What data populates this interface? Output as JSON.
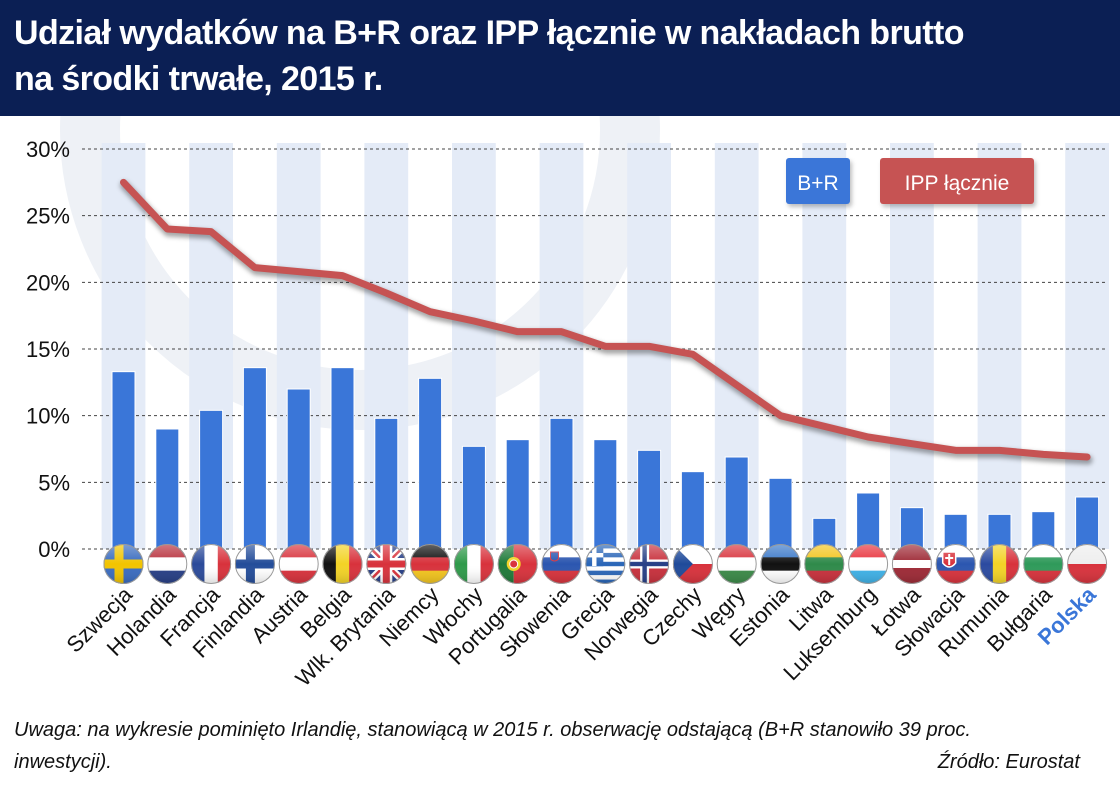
{
  "header": {
    "title_line1": "Udział wydatków na B+R oraz IPP łącznie w nakładach brutto",
    "title_line2": "na środki trwałe, 2015 r."
  },
  "footer": {
    "note": "Uwaga: na wykresie pominięto Irlandię, stanowiącą w 2015 r. obserwację odstającą (B+R stanowiło 39 proc. inwestycji).",
    "source": "Źródło: Eurostat"
  },
  "colors": {
    "header_bg": "#0b1f54",
    "bar": "#3a76d8",
    "line": "#c65353",
    "highlight_label": "#3a76d8",
    "stripe": "#e4ebf7"
  },
  "chart_data": {
    "type": "bar",
    "categories": [
      "Szwecja",
      "Holandia",
      "Francja",
      "Finlandia",
      "Austria",
      "Belgia",
      "Wlk. Brytania",
      "Niemcy",
      "Włochy",
      "Portugalia",
      "Słowenia",
      "Grecja",
      "Norwegia",
      "Czechy",
      "Węgry",
      "Estonia",
      "Litwa",
      "Luksemburg",
      "Łotwa",
      "Słowacja",
      "Rumunia",
      "Bułgaria",
      "Polska"
    ],
    "highlight_category": "Polska",
    "series": [
      {
        "name": "B+R",
        "type": "bar",
        "values": [
          13.3,
          9.0,
          10.4,
          13.6,
          12.0,
          13.6,
          9.8,
          12.8,
          7.7,
          8.2,
          9.8,
          8.2,
          7.4,
          5.8,
          6.9,
          5.3,
          2.3,
          4.2,
          3.1,
          2.6,
          2.6,
          2.8,
          3.9
        ]
      },
      {
        "name": "IPP łącznie",
        "type": "line",
        "values": [
          27.5,
          24.0,
          23.8,
          21.1,
          20.8,
          20.5,
          19.2,
          17.8,
          17.1,
          16.3,
          16.3,
          15.2,
          15.2,
          14.6,
          12.3,
          10.0,
          9.2,
          8.4,
          7.9,
          7.4,
          7.4,
          7.1,
          6.9
        ]
      }
    ],
    "y_ticks": [
      "0%",
      "5%",
      "10%",
      "15%",
      "20%",
      "25%",
      "30%"
    ],
    "ylim": [
      0,
      30
    ],
    "grid": true,
    "legend_position": "top-right",
    "flags": [
      "flag-sweden",
      "flag-netherlands",
      "flag-france",
      "flag-finland",
      "flag-austria",
      "flag-belgium",
      "flag-uk",
      "flag-germany",
      "flag-italy",
      "flag-portugal",
      "flag-slovenia",
      "flag-greece",
      "flag-norway",
      "flag-czechia",
      "flag-hungary",
      "flag-estonia",
      "flag-lithuania",
      "flag-luxembourg",
      "flag-latvia",
      "flag-slovakia",
      "flag-romania",
      "flag-bulgaria",
      "flag-poland"
    ]
  }
}
